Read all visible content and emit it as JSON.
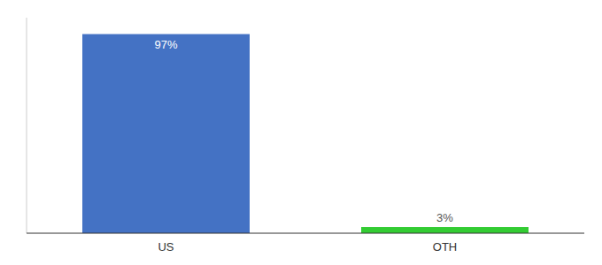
{
  "chart_data": {
    "type": "bar",
    "categories": [
      "US",
      "OTH"
    ],
    "values": [
      97,
      3
    ],
    "value_labels": [
      "97%",
      "3%"
    ],
    "colors": [
      "#4472c4",
      "#33cc33"
    ],
    "ylim": [
      0,
      105
    ],
    "data_labels": true,
    "tick_labels": "x"
  }
}
